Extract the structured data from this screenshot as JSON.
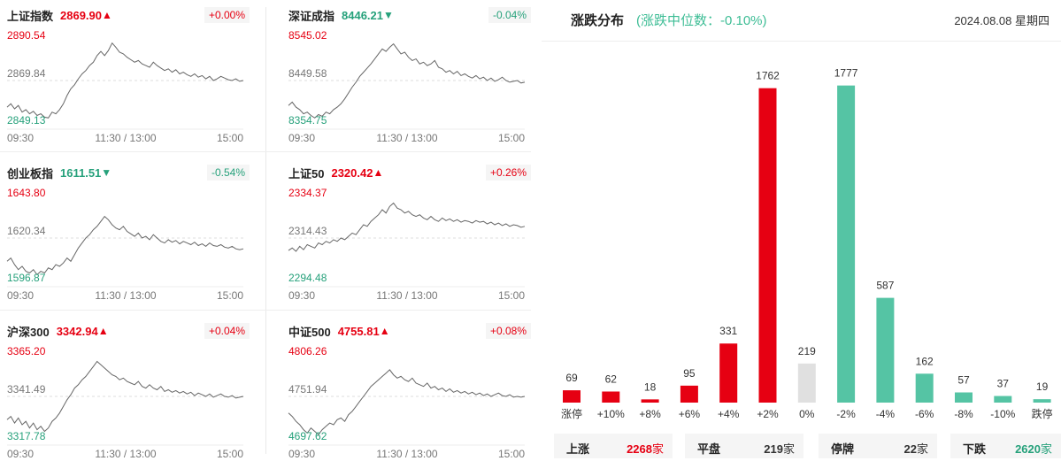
{
  "indices": [
    {
      "name": "上证指数",
      "price": "2869.90",
      "arrow": "▲",
      "change": "+0.00%",
      "dir": "up",
      "high": "2890.54",
      "mid": "2869.84",
      "low": "2849.13",
      "time_start": "09:30",
      "time_mid": "11:30 / 13:00",
      "time_end": "15:00",
      "series": [
        0.18,
        0.22,
        0.16,
        0.2,
        0.12,
        0.15,
        0.1,
        0.13,
        0.08,
        0.1,
        0.06,
        0.05,
        0.12,
        0.1,
        0.15,
        0.22,
        0.32,
        0.4,
        0.45,
        0.52,
        0.58,
        0.62,
        0.68,
        0.72,
        0.8,
        0.85,
        0.8,
        0.86,
        0.95,
        0.9,
        0.84,
        0.82,
        0.78,
        0.75,
        0.72,
        0.74,
        0.7,
        0.68,
        0.66,
        0.72,
        0.68,
        0.65,
        0.62,
        0.64,
        0.6,
        0.63,
        0.58,
        0.6,
        0.57,
        0.55,
        0.58,
        0.54,
        0.56,
        0.52,
        0.55,
        0.5,
        0.52,
        0.55,
        0.53,
        0.51,
        0.5,
        0.52,
        0.49,
        0.5
      ]
    },
    {
      "name": "深证成指",
      "price": "8446.21",
      "arrow": "▼",
      "change": "-0.04%",
      "dir": "down",
      "high": "8545.02",
      "mid": "8449.58",
      "low": "8354.75",
      "time_start": "09:30",
      "time_mid": "11:30 / 13:00",
      "time_end": "15:00",
      "series": [
        0.2,
        0.24,
        0.18,
        0.15,
        0.1,
        0.12,
        0.08,
        0.05,
        0.09,
        0.07,
        0.12,
        0.1,
        0.15,
        0.18,
        0.22,
        0.28,
        0.35,
        0.42,
        0.48,
        0.55,
        0.6,
        0.65,
        0.7,
        0.76,
        0.82,
        0.88,
        0.85,
        0.9,
        0.94,
        0.88,
        0.82,
        0.84,
        0.78,
        0.74,
        0.76,
        0.7,
        0.72,
        0.68,
        0.7,
        0.74,
        0.66,
        0.64,
        0.6,
        0.62,
        0.58,
        0.61,
        0.56,
        0.58,
        0.55,
        0.53,
        0.56,
        0.52,
        0.54,
        0.5,
        0.53,
        0.49,
        0.51,
        0.54,
        0.5,
        0.48,
        0.49,
        0.5,
        0.47,
        0.48
      ]
    },
    {
      "name": "创业板指",
      "price": "1611.51",
      "arrow": "▼",
      "change": "-0.54%",
      "dir": "down",
      "high": "1643.80",
      "mid": "1620.34",
      "low": "1596.87",
      "time_start": "09:30",
      "time_mid": "11:30 / 13:00",
      "time_end": "15:00",
      "series": [
        0.22,
        0.26,
        0.18,
        0.12,
        0.16,
        0.1,
        0.08,
        0.12,
        0.06,
        0.1,
        0.08,
        0.14,
        0.12,
        0.18,
        0.16,
        0.2,
        0.26,
        0.22,
        0.3,
        0.38,
        0.44,
        0.5,
        0.54,
        0.6,
        0.64,
        0.7,
        0.76,
        0.72,
        0.66,
        0.62,
        0.6,
        0.64,
        0.58,
        0.55,
        0.52,
        0.56,
        0.5,
        0.52,
        0.48,
        0.54,
        0.5,
        0.46,
        0.44,
        0.48,
        0.45,
        0.47,
        0.43,
        0.46,
        0.44,
        0.42,
        0.45,
        0.41,
        0.43,
        0.4,
        0.44,
        0.41,
        0.4,
        0.42,
        0.39,
        0.38,
        0.4,
        0.37,
        0.36,
        0.37
      ]
    },
    {
      "name": "上证50",
      "price": "2320.42",
      "arrow": "▲",
      "change": "+0.26%",
      "dir": "up",
      "high": "2334.37",
      "mid": "2314.43",
      "low": "2294.48",
      "time_start": "09:30",
      "time_mid": "11:30 / 13:00",
      "time_end": "15:00",
      "series": [
        0.35,
        0.38,
        0.34,
        0.4,
        0.36,
        0.42,
        0.4,
        0.38,
        0.44,
        0.42,
        0.46,
        0.44,
        0.48,
        0.46,
        0.5,
        0.48,
        0.52,
        0.56,
        0.54,
        0.6,
        0.66,
        0.64,
        0.7,
        0.74,
        0.78,
        0.84,
        0.8,
        0.88,
        0.92,
        0.86,
        0.84,
        0.8,
        0.82,
        0.78,
        0.76,
        0.78,
        0.74,
        0.72,
        0.76,
        0.72,
        0.7,
        0.74,
        0.71,
        0.73,
        0.7,
        0.72,
        0.69,
        0.71,
        0.7,
        0.68,
        0.71,
        0.69,
        0.7,
        0.67,
        0.69,
        0.66,
        0.68,
        0.65,
        0.67,
        0.64,
        0.66,
        0.65,
        0.63,
        0.64
      ]
    },
    {
      "name": "沪深300",
      "price": "3342.94",
      "arrow": "▲",
      "change": "+0.04%",
      "dir": "up",
      "high": "3365.20",
      "mid": "3341.49",
      "low": "3317.78",
      "time_start": "09:30",
      "time_mid": "11:30 / 13:00",
      "time_end": "15:00",
      "series": [
        0.22,
        0.26,
        0.18,
        0.24,
        0.16,
        0.2,
        0.12,
        0.18,
        0.1,
        0.14,
        0.08,
        0.12,
        0.2,
        0.24,
        0.3,
        0.38,
        0.46,
        0.52,
        0.6,
        0.64,
        0.7,
        0.74,
        0.8,
        0.86,
        0.92,
        0.88,
        0.84,
        0.8,
        0.76,
        0.74,
        0.7,
        0.72,
        0.68,
        0.66,
        0.64,
        0.68,
        0.62,
        0.6,
        0.64,
        0.6,
        0.58,
        0.62,
        0.56,
        0.58,
        0.55,
        0.57,
        0.54,
        0.56,
        0.53,
        0.55,
        0.51,
        0.54,
        0.52,
        0.5,
        0.53,
        0.49,
        0.51,
        0.53,
        0.5,
        0.49,
        0.51,
        0.48,
        0.49,
        0.5
      ]
    },
    {
      "name": "中证500",
      "price": "4755.81",
      "arrow": "▲",
      "change": "+0.08%",
      "dir": "up",
      "high": "4806.26",
      "mid": "4751.94",
      "low": "4697.62",
      "time_start": "09:30",
      "time_mid": "11:30 / 13:00",
      "time_end": "15:00",
      "series": [
        0.3,
        0.26,
        0.2,
        0.16,
        0.1,
        0.06,
        0.12,
        0.08,
        0.04,
        0.1,
        0.14,
        0.18,
        0.16,
        0.22,
        0.24,
        0.2,
        0.28,
        0.32,
        0.38,
        0.44,
        0.5,
        0.56,
        0.62,
        0.66,
        0.7,
        0.74,
        0.78,
        0.82,
        0.76,
        0.72,
        0.74,
        0.7,
        0.68,
        0.72,
        0.66,
        0.64,
        0.62,
        0.66,
        0.6,
        0.62,
        0.58,
        0.6,
        0.56,
        0.59,
        0.55,
        0.57,
        0.54,
        0.56,
        0.53,
        0.55,
        0.52,
        0.54,
        0.51,
        0.53,
        0.5,
        0.52,
        0.54,
        0.51,
        0.5,
        0.52,
        0.49,
        0.5,
        0.49,
        0.5
      ]
    }
  ],
  "distribution": {
    "title": "涨跌分布",
    "subtitle": "(涨跌中位数：-0.10%)",
    "date": "2024.08.08 星期四"
  },
  "chart_data": {
    "type": "bar",
    "categories": [
      "涨停",
      "+10%",
      "+8%",
      "+6%",
      "+4%",
      "+2%",
      "0%",
      "-2%",
      "-4%",
      "-6%",
      "-8%",
      "-10%",
      "跌停"
    ],
    "values": [
      69,
      62,
      18,
      95,
      331,
      1762,
      219,
      1777,
      587,
      162,
      57,
      37,
      19
    ],
    "colors": [
      "#e60012",
      "#e60012",
      "#e60012",
      "#e60012",
      "#e60012",
      "#e60012",
      "#e0e0e0",
      "#55c4a4",
      "#55c4a4",
      "#55c4a4",
      "#55c4a4",
      "#55c4a4",
      "#55c4a4"
    ],
    "ylim": [
      0,
      1800
    ],
    "title": "",
    "xlabel": "",
    "ylabel": ""
  },
  "summary": [
    {
      "label": "上涨",
      "value": "2268",
      "unit": "家",
      "dir": "up"
    },
    {
      "label": "平盘",
      "value": "219",
      "unit": "家",
      "dir": "flat"
    },
    {
      "label": "停牌",
      "value": "22",
      "unit": "家",
      "dir": "flat"
    },
    {
      "label": "下跌",
      "value": "2620",
      "unit": "家",
      "dir": "down"
    }
  ],
  "colors": {
    "up": "#e60012",
    "down": "#26a17b",
    "line": "#666666",
    "flat_bar": "#e0e0e0"
  }
}
